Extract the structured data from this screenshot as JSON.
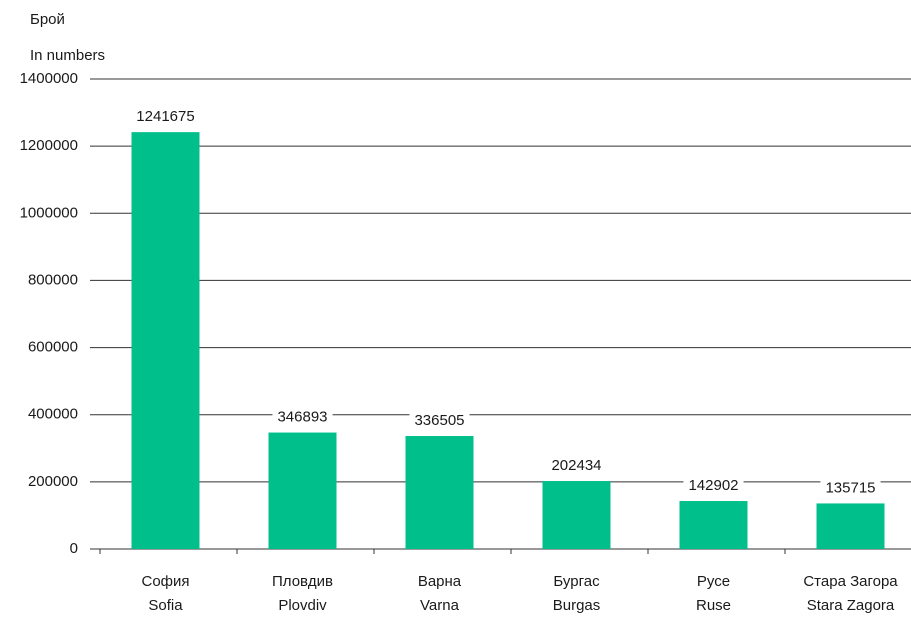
{
  "chart_data": {
    "type": "bar",
    "y_label": [
      "Брой",
      "In numbers"
    ],
    "categories": [
      [
        "София",
        "Sofia"
      ],
      [
        "Пловдив",
        "Plovdiv"
      ],
      [
        "Варна",
        "Varna"
      ],
      [
        "Бургас",
        "Burgas"
      ],
      [
        "Русе",
        "Ruse"
      ],
      [
        "Стара Загора",
        "Stara Zagora"
      ]
    ],
    "values": [
      1241675,
      346893,
      336505,
      202434,
      142902,
      135715
    ],
    "color": "#00bf8b",
    "ylim": [
      0,
      1400000
    ],
    "yticks": [
      0,
      200000,
      400000,
      600000,
      800000,
      1000000,
      1200000,
      1400000
    ],
    "grid": true
  }
}
